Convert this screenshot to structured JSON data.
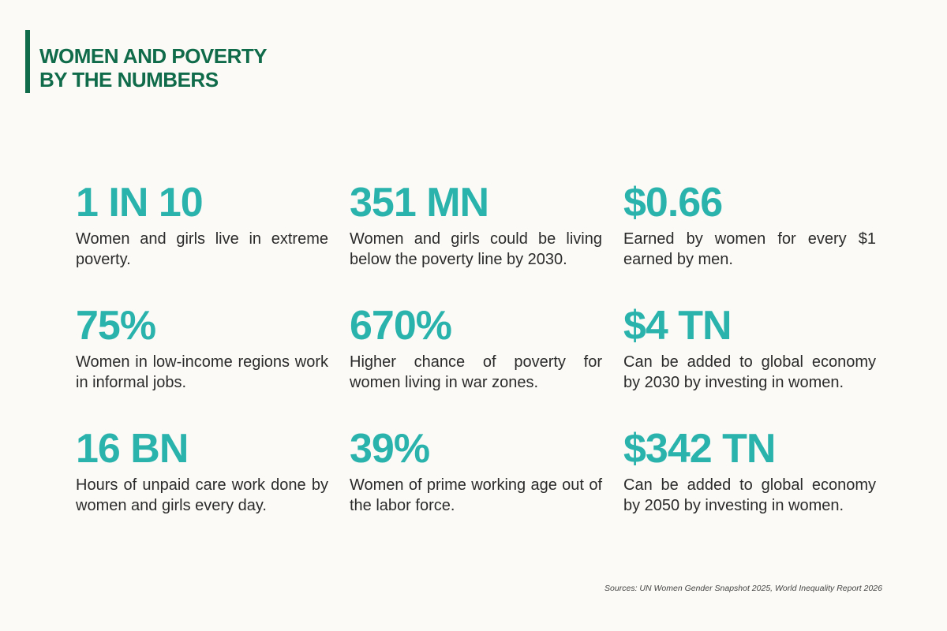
{
  "title": {
    "line1": "WOMEN AND POVERTY",
    "line2": "BY THE NUMBERS"
  },
  "stats": [
    {
      "value": "1 IN 10",
      "description": "Women and girls live in extreme poverty."
    },
    {
      "value": "351 MN",
      "description": "Women and girls could be living below the poverty line by 2030."
    },
    {
      "value": "$0.66",
      "description": "Earned by women for every $1 earned by men."
    },
    {
      "value": "75%",
      "description": "Women in low-income regions work in informal jobs."
    },
    {
      "value": "670%",
      "description": "Higher chance of poverty for women living in war zones."
    },
    {
      "value": "$4 TN",
      "description": "Can be added to global economy by 2030 by investing in women."
    },
    {
      "value": "16 BN",
      "description": "Hours of unpaid care work done by women and girls every day."
    },
    {
      "value": "39%",
      "description": "Women of prime working age out of the labor force."
    },
    {
      "value": "$342 TN",
      "description": "Can be added to global economy by 2050 by investing in women."
    }
  ],
  "sources": "Sources: UN Women Gender Snapshot 2025, World Inequality Report 2026",
  "colors": {
    "title": "#0f6b4a",
    "stat_value": "#2ab2ad",
    "background": "#fbfaf6",
    "body_text": "#2b2b2b"
  }
}
